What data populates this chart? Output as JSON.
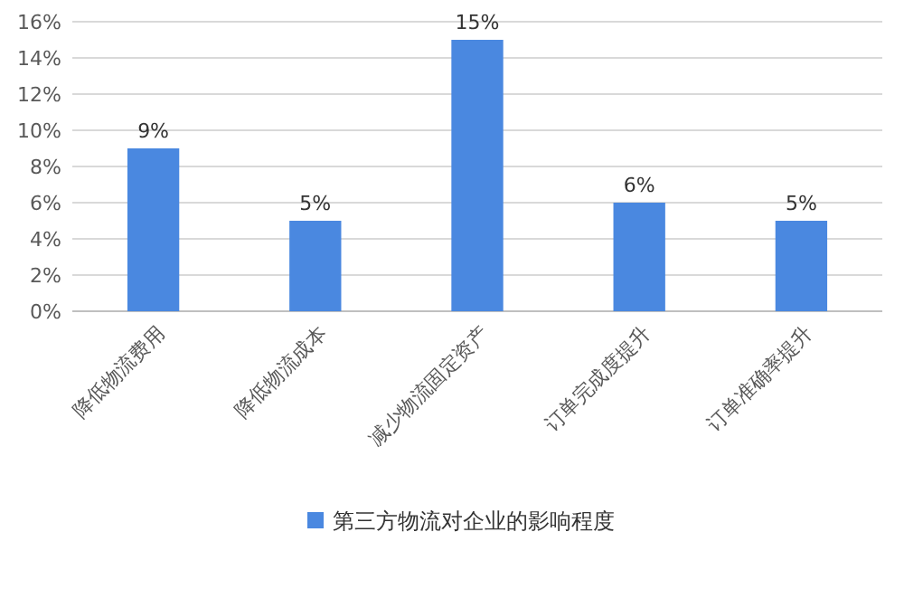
{
  "chart_data": {
    "type": "bar",
    "categories": [
      "降低物流费用",
      "降低物流成本",
      "减少物流固定资产",
      "订单完成度提升",
      "订单准确率提升"
    ],
    "series": [
      {
        "name": "第三方物流对企业的影响程度",
        "color": "#4a88e0",
        "values": [
          9,
          5,
          15,
          6,
          5
        ],
        "value_labels": [
          "9%",
          "5%",
          "15%",
          "6%",
          "5%"
        ]
      }
    ],
    "ylim": [
      0,
      16
    ],
    "yticks": [
      {
        "value": 0,
        "label": "0%"
      },
      {
        "value": 2,
        "label": "2%"
      },
      {
        "value": 4,
        "label": "4%"
      },
      {
        "value": 6,
        "label": "6%"
      },
      {
        "value": 8,
        "label": "8%"
      },
      {
        "value": 10,
        "label": "10%"
      },
      {
        "value": 12,
        "label": "12%"
      },
      {
        "value": 14,
        "label": "14%"
      },
      {
        "value": 16,
        "label": "16%"
      }
    ],
    "grid": "y",
    "legend": "bottom"
  }
}
